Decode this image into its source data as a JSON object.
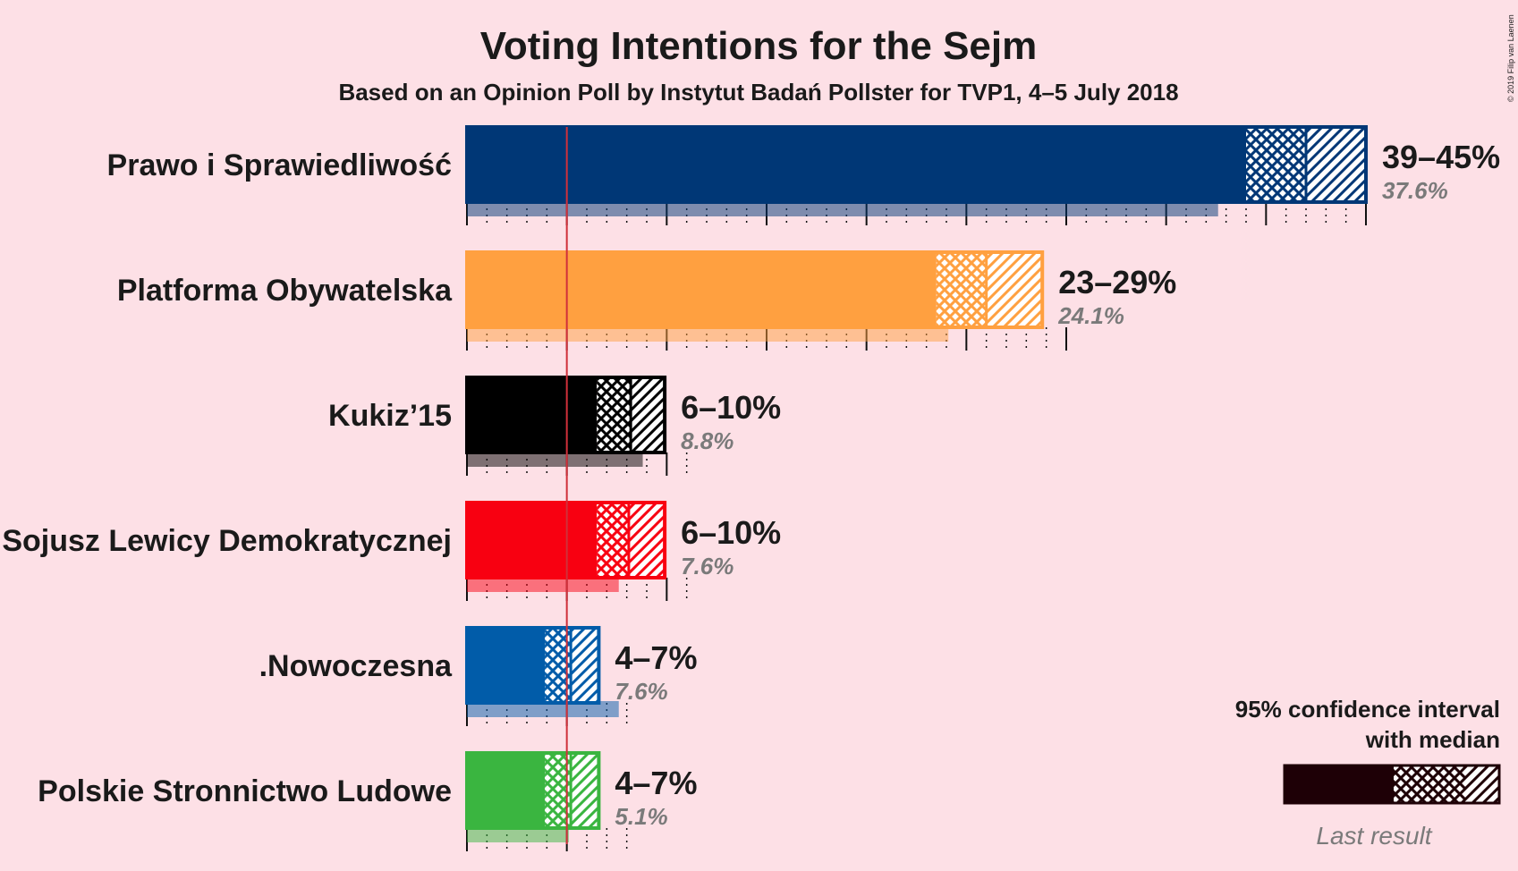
{
  "copyright": "© 2019 Filip van Laenen",
  "chart_data": {
    "type": "bar",
    "title": "Voting Intentions for the Sejm",
    "subtitle": "Based on an Opinion Poll by Instytut Badań Pollster for TVP1, 4–5 July 2018",
    "xlim": [
      0,
      45
    ],
    "threshold": 5,
    "parties": [
      {
        "name": "Prawo i Sprawiedliwość",
        "color": "#003776",
        "low": 39,
        "median": 42,
        "high": 45,
        "range_label": "39–45%",
        "last": 37.6,
        "last_label": "37.6%"
      },
      {
        "name": "Platforma Obywatelska",
        "color": "#ffa040",
        "low": 23.5,
        "median": 26,
        "high": 28.8,
        "range_label": "23–29%",
        "last": 24.1,
        "last_label": "24.1%"
      },
      {
        "name": "Kukiz’15",
        "color": "#000000",
        "low": 6.5,
        "median": 8.2,
        "high": 9.9,
        "range_label": "6–10%",
        "last": 8.8,
        "last_label": "8.8%"
      },
      {
        "name": "Sojusz Lewicy Demokratycznej",
        "color": "#f80011",
        "low": 6.5,
        "median": 8.1,
        "high": 9.9,
        "range_label": "6–10%",
        "last": 7.6,
        "last_label": "7.6%"
      },
      {
        "name": ".Nowoczesna",
        "color": "#015ca9",
        "low": 3.9,
        "median": 5.2,
        "high": 6.6,
        "range_label": "4–7%",
        "last": 7.6,
        "last_label": "7.6%"
      },
      {
        "name": "Polskie Stronnictwo Ludowe",
        "color": "#3ab540",
        "low": 3.9,
        "median": 5.2,
        "high": 6.6,
        "range_label": "4–7%",
        "last": 5.1,
        "last_label": "5.1%"
      }
    ]
  },
  "legend": {
    "line1": "95% confidence interval",
    "line2": "with median",
    "last_result": "Last result",
    "color": "#1e0006"
  }
}
